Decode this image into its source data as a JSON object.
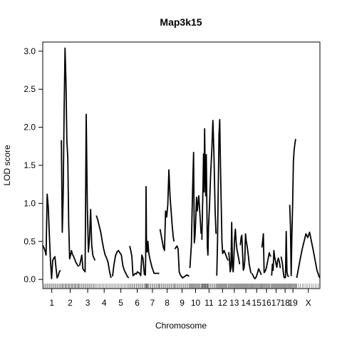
{
  "chart_data": {
    "type": "line",
    "title": "Map3k15",
    "xlabel": "Chromosome",
    "ylabel": "LOD score",
    "xlim": [
      0,
      1505
    ],
    "ylim": [
      -0.12,
      3.12
    ],
    "yticks": [
      "0.0",
      "0.5",
      "1.0",
      "1.5",
      "2.0",
      "2.5",
      "3.0"
    ],
    "grid": false,
    "legend": "none",
    "line_color": "#000000",
    "chromosomes": [
      {
        "label": "1",
        "start": 0,
        "len": 98,
        "x": [
          0,
          6,
          12,
          18,
          24,
          30,
          36,
          42,
          48,
          54,
          60,
          66,
          72,
          78,
          84,
          90,
          96
        ],
        "y": [
          0.45,
          0.42,
          0.38,
          0.32,
          1.12,
          0.95,
          0.58,
          0.24,
          0.01,
          0.25,
          0.28,
          0.3,
          0.15,
          0.02,
          0.05,
          0.1,
          0.12
        ]
      },
      {
        "label": "2",
        "start": 101,
        "len": 96,
        "x": [
          0,
          5,
          10,
          15,
          20,
          25,
          30,
          35,
          40,
          45,
          50,
          55,
          60,
          65,
          70,
          75,
          80,
          85,
          90,
          95
        ],
        "y": [
          1.83,
          0.62,
          1.1,
          2.2,
          3.04,
          2.6,
          1.82,
          1.6,
          0.72,
          0.27,
          0.32,
          0.38,
          0.33,
          0.31,
          0.28,
          0.25,
          0.22,
          0.2,
          0.18,
          0.17
        ]
      },
      {
        "label": "3",
        "start": 200,
        "len": 88,
        "x": [
          0,
          6,
          12,
          18,
          24,
          30,
          36,
          42,
          48,
          54,
          60,
          66,
          72,
          78,
          84
        ],
        "y": [
          0.18,
          0.25,
          0.32,
          0.14,
          0.12,
          0.1,
          2.17,
          0.96,
          0.36,
          0.55,
          0.92,
          0.45,
          0.32,
          0.28,
          0.25
        ]
      },
      {
        "label": "4",
        "start": 291,
        "len": 85,
        "x": [
          0,
          8,
          16,
          24,
          32,
          40,
          48,
          56,
          64,
          72,
          80
        ],
        "y": [
          0.84,
          0.78,
          0.7,
          0.62,
          0.5,
          0.4,
          0.32,
          0.28,
          0.22,
          0.1,
          0.02
        ]
      },
      {
        "label": "5",
        "start": 379,
        "len": 90,
        "x": [
          0,
          8,
          16,
          24,
          32,
          40,
          48,
          56,
          64,
          72,
          80,
          88
        ],
        "y": [
          0.04,
          0.2,
          0.31,
          0.36,
          0.38,
          0.35,
          0.32,
          0.18,
          0.12,
          0.08,
          0.04,
          0.02
        ]
      },
      {
        "label": "6",
        "start": 472,
        "len": 82,
        "x": [
          0,
          6,
          12,
          18,
          24,
          30,
          36,
          42,
          48,
          54,
          60,
          66,
          72,
          80
        ],
        "y": [
          0.44,
          0.38,
          0.3,
          0.05,
          0.06,
          0.08,
          0.07,
          0.1,
          0.09,
          0.08,
          0.05,
          0.32,
          0.28,
          0.06
        ]
      },
      {
        "label": "7",
        "start": 557,
        "len": 77,
        "x": [
          0,
          2,
          4,
          6,
          8,
          10,
          14,
          18,
          24,
          30,
          36,
          42,
          48,
          54,
          60,
          66,
          72,
          76
        ],
        "y": [
          0.05,
          0.3,
          1.22,
          0.55,
          0.38,
          0.36,
          0.5,
          0.36,
          0.28,
          0.22,
          0.16,
          0.12,
          0.08,
          0.08,
          0.08,
          0.08,
          0.08,
          0.08
        ]
      },
      {
        "label": "8",
        "start": 637,
        "len": 77,
        "x": [
          0,
          6,
          12,
          18,
          24,
          30,
          36,
          42,
          48,
          54,
          60,
          66,
          72,
          76
        ],
        "y": [
          0.66,
          0.58,
          0.5,
          0.42,
          0.38,
          0.9,
          0.82,
          0.98,
          1.44,
          1.1,
          0.9,
          0.7,
          0.55,
          0.5
        ]
      },
      {
        "label": "9",
        "start": 717,
        "len": 79,
        "x": [
          0,
          6,
          12,
          18,
          24,
          30,
          36,
          42,
          48,
          54,
          60,
          66,
          72,
          78
        ],
        "y": [
          0.4,
          0.42,
          0.44,
          0.4,
          0.1,
          0.06,
          0.04,
          0.02,
          0.03,
          0.04,
          0.05,
          0.06,
          0.05,
          0.04
        ]
      },
      {
        "label": "10",
        "start": 799,
        "len": 62,
        "x": [
          0,
          4,
          8,
          12,
          16,
          20,
          24,
          28,
          32,
          36,
          40,
          44,
          48,
          52,
          56,
          61
        ],
        "y": [
          0.15,
          0.3,
          0.45,
          0.9,
          1.3,
          1.67,
          0.48,
          0.58,
          0.8,
          1.08,
          0.9,
          1.0,
          1.1,
          0.95,
          0.8,
          0.6
        ]
      },
      {
        "label": "11",
        "start": 864,
        "len": 78,
        "x": [
          0,
          3,
          6,
          9,
          12,
          15,
          18,
          21,
          24,
          27,
          30,
          33,
          36,
          42,
          48,
          54,
          60,
          66,
          72,
          77
        ],
        "y": [
          0.52,
          0.88,
          1.2,
          1.65,
          1.15,
          1.98,
          1.4,
          1.1,
          1.64,
          1.0,
          0.42,
          0.32,
          0.68,
          1.0,
          1.4,
          1.7,
          2.09,
          1.6,
          0.9,
          0.6
        ]
      },
      {
        "label": "12",
        "start": 945,
        "len": 62,
        "x": [
          0,
          4,
          8,
          12,
          16,
          20,
          24,
          28,
          32,
          36,
          40,
          44,
          48,
          52,
          56,
          61
        ],
        "y": [
          0.05,
          0.5,
          1.2,
          1.9,
          2.1,
          1.5,
          1.0,
          0.5,
          0.34,
          0.36,
          0.38,
          0.35,
          0.33,
          0.3,
          0.28,
          0.25
        ]
      },
      {
        "label": "13",
        "start": 1010,
        "len": 60,
        "x": [
          0,
          4,
          8,
          12,
          16,
          20,
          24,
          28,
          32,
          36,
          40,
          44,
          48,
          52,
          56,
          59
        ],
        "y": [
          0.36,
          0.25,
          0.1,
          0.15,
          0.75,
          0.18,
          0.1,
          0.3,
          0.55,
          0.66,
          0.5,
          0.4,
          0.35,
          0.3,
          0.25,
          0.2
        ]
      },
      {
        "label": "14",
        "start": 1073,
        "len": 60,
        "x": [
          0,
          4,
          8,
          12,
          16,
          20,
          24,
          28,
          32,
          36,
          40,
          44,
          48,
          52,
          56,
          59
        ],
        "y": [
          0.45,
          0.55,
          0.58,
          0.35,
          0.12,
          0.15,
          0.25,
          0.6,
          0.5,
          0.45,
          0.38,
          0.3,
          0.2,
          0.15,
          0.1,
          0.08
        ]
      },
      {
        "label": "15",
        "start": 1136,
        "len": 51,
        "x": [
          0,
          4,
          8,
          12,
          16,
          20,
          24,
          28,
          32,
          36,
          40,
          44,
          48,
          50
        ],
        "y": [
          0.08,
          0.06,
          0.04,
          0.02,
          0.01,
          0.02,
          0.04,
          0.07,
          0.1,
          0.14,
          0.12,
          0.1,
          0.08,
          0.06
        ]
      },
      {
        "label": "16",
        "start": 1190,
        "len": 50,
        "x": [
          0,
          4,
          8,
          12,
          16,
          20,
          24,
          28,
          32,
          36,
          40,
          44,
          49
        ],
        "y": [
          0.42,
          0.5,
          0.6,
          0.09,
          0.1,
          0.12,
          0.15,
          0.2,
          0.25,
          0.3,
          0.35,
          0.32,
          0.3
        ]
      },
      {
        "label": "17",
        "start": 1243,
        "len": 48,
        "x": [
          0,
          4,
          8,
          12,
          16,
          20,
          24,
          28,
          32,
          36,
          40,
          44,
          47
        ],
        "y": [
          0.05,
          0.2,
          0.12,
          0.38,
          0.3,
          0.25,
          0.2,
          0.16,
          0.24,
          0.28,
          0.25,
          0.2,
          0.15
        ]
      },
      {
        "label": "18",
        "start": 1294,
        "len": 44,
        "x": [
          0,
          4,
          8,
          12,
          16,
          20,
          24,
          28,
          32,
          36,
          40,
          43
        ],
        "y": [
          0.3,
          0.25,
          0.2,
          0.1,
          0.03,
          0.02,
          0.03,
          0.63,
          0.1,
          0.05,
          0.04,
          0.04
        ]
      },
      {
        "label": "19",
        "start": 1341,
        "len": 35,
        "x": [
          0,
          4,
          8,
          12,
          16,
          20,
          24,
          28,
          32,
          34
        ],
        "y": [
          0.98,
          0.7,
          0.05,
          0.6,
          1.0,
          1.55,
          1.7,
          1.78,
          1.84,
          1.84
        ]
      },
      {
        "label": "X",
        "start": 1379,
        "len": 126,
        "x": [
          0,
          10,
          20,
          30,
          40,
          50,
          60,
          70,
          80,
          90,
          100,
          110,
          120,
          125
        ],
        "y": [
          0.02,
          0.15,
          0.28,
          0.4,
          0.5,
          0.6,
          0.55,
          0.62,
          0.5,
          0.38,
          0.25,
          0.12,
          0.05,
          0.02
        ]
      }
    ]
  }
}
